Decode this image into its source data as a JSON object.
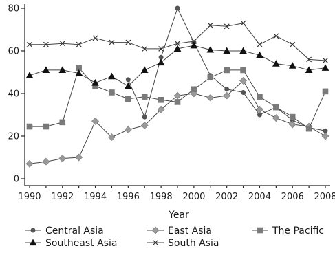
{
  "chart_data": {
    "type": "line",
    "xlabel": "Year",
    "ylabel": "",
    "xlim": [
      1990,
      2008
    ],
    "ylim": [
      0,
      80
    ],
    "xticks": [
      "1990",
      "1992",
      "1994",
      "1996",
      "1998",
      "2000",
      "2002",
      "2004",
      "2006",
      "2008"
    ],
    "yticks": [
      "0",
      "20",
      "40",
      "60",
      "80"
    ],
    "grid": false,
    "legend_position": "bottom",
    "x": [
      1990,
      1991,
      1992,
      1993,
      1994,
      1995,
      1996,
      1997,
      1998,
      1999,
      2000,
      2001,
      2002,
      2003,
      2004,
      2005,
      2006,
      2007,
      2008
    ],
    "series": [
      {
        "name": "Central Asia",
        "marker": "circle",
        "color": "#555555",
        "values": [
          null,
          null,
          null,
          null,
          null,
          null,
          46.5,
          29,
          57,
          80,
          64,
          48.5,
          42,
          40.5,
          30,
          33.5,
          27.5,
          24,
          22.5
        ]
      },
      {
        "name": "East Asia",
        "marker": "diamond",
        "color": "#9a9a9a",
        "values": [
          7,
          8,
          9.5,
          10,
          27,
          19.5,
          23,
          25,
          32.5,
          39,
          40,
          38,
          39,
          46,
          32.5,
          28.5,
          25.5,
          24.5,
          20
        ]
      },
      {
        "name": "The Pacific",
        "marker": "square",
        "color": "#7a7a7a",
        "values": [
          24.5,
          24.5,
          26.5,
          52,
          43.5,
          40.5,
          37.5,
          38.5,
          37,
          36,
          42,
          47.5,
          51,
          51,
          38.5,
          33.5,
          29,
          23.5,
          41
        ]
      },
      {
        "name": "Southeast Asia",
        "marker": "triangle",
        "color": "#111111",
        "values": [
          48.5,
          51,
          51,
          49.5,
          45,
          48,
          43.5,
          51,
          54.5,
          61,
          62.5,
          60.5,
          60,
          60,
          58,
          54,
          53,
          51,
          52
        ]
      },
      {
        "name": "South Asia",
        "marker": "x",
        "color": "#333333",
        "values": [
          63,
          63,
          63.5,
          63,
          66,
          64,
          64,
          61,
          61,
          63.5,
          64.5,
          72,
          71.5,
          73,
          63,
          67,
          63,
          56,
          55.5
        ]
      }
    ]
  }
}
